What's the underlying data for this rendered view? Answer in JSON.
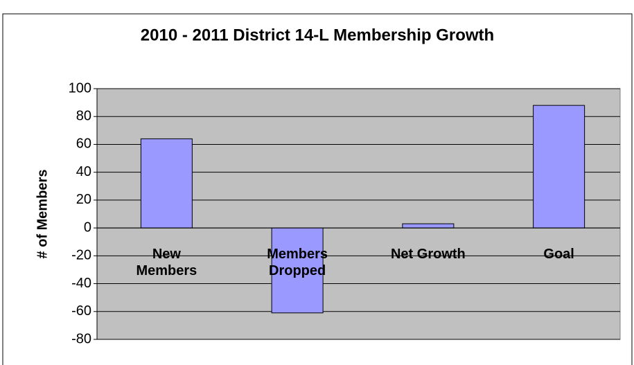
{
  "chart_data": {
    "type": "bar",
    "title": "2010 - 2011 District 14-L Membership Growth",
    "ylabel": "# of Members",
    "categories": [
      "New Members",
      "Members Dropped",
      "Net Growth",
      "Goal"
    ],
    "values": [
      64,
      -61,
      3,
      88
    ],
    "color": "#9999ff",
    "ylim": [
      -80,
      100
    ],
    "yticks": [
      -80,
      -60,
      -40,
      -20,
      0,
      20,
      40,
      60,
      80,
      100
    ],
    "grid": true
  }
}
